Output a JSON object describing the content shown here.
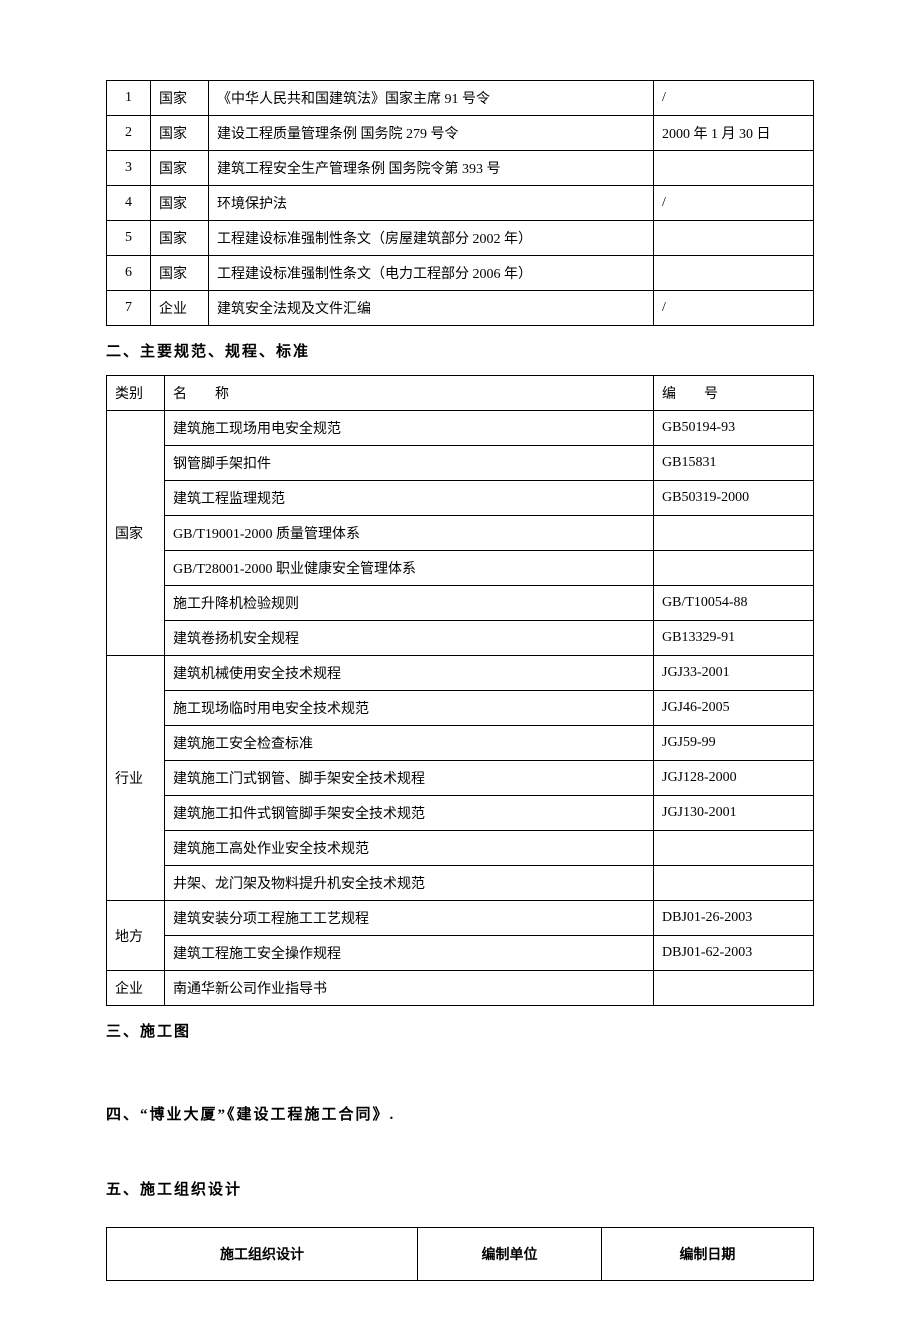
{
  "table1": {
    "rows": [
      {
        "num": "1",
        "cat": "国家",
        "name": "《中华人民共和国建筑法》国家主席 91 号令",
        "date": "/"
      },
      {
        "num": "2",
        "cat": "国家",
        "name": "建设工程质量管理条例 国务院 279 号令",
        "date": "2000 年 1 月 30 日"
      },
      {
        "num": "3",
        "cat": "国家",
        "name": "建筑工程安全生产管理条例 国务院令第 393 号",
        "date": ""
      },
      {
        "num": "4",
        "cat": "国家",
        "name": "环境保护法",
        "date": "/"
      },
      {
        "num": "5",
        "cat": "国家",
        "name": "工程建设标准强制性条文（房屋建筑部分 2002 年）",
        "date": ""
      },
      {
        "num": "6",
        "cat": "国家",
        "name": "工程建设标准强制性条文（电力工程部分 2006 年）",
        "date": ""
      },
      {
        "num": "7",
        "cat": "企业",
        "name": "建筑安全法规及文件汇编",
        "date": "/"
      }
    ]
  },
  "section2_title": "二、主要规范、规程、标准",
  "table2": {
    "header": {
      "cat": "类别",
      "name": "名　　称",
      "code": "编　　号"
    },
    "groups": [
      {
        "cat": "国家",
        "rows": [
          {
            "name": "建筑施工现场用电安全规范",
            "code": "GB50194-93"
          },
          {
            "name": "钢管脚手架扣件",
            "code": "GB15831"
          },
          {
            "name": "建筑工程监理规范",
            "code": "GB50319-2000"
          },
          {
            "name": "GB/T19001-2000 质量管理体系",
            "code": ""
          },
          {
            "name": "GB/T28001-2000 职业健康安全管理体系",
            "code": ""
          },
          {
            "name": "施工升降机检验规则",
            "code": "GB/T10054-88"
          },
          {
            "name": "建筑卷扬机安全规程",
            "code": "GB13329-91"
          }
        ]
      },
      {
        "cat": "行业",
        "rows": [
          {
            "name": "建筑机械使用安全技术规程",
            "code": "JGJ33-2001"
          },
          {
            "name": "施工现场临时用电安全技术规范",
            "code": "JGJ46-2005"
          },
          {
            "name": "建筑施工安全检查标准",
            "code": "JGJ59-99"
          },
          {
            "name": "建筑施工门式钢管、脚手架安全技术规程",
            "code": "JGJ128-2000"
          },
          {
            "name": "建筑施工扣件式钢管脚手架安全技术规范",
            "code": "JGJ130-2001"
          },
          {
            "name": "建筑施工高处作业安全技术规范",
            "code": ""
          },
          {
            "name": "井架、龙门架及物料提升机安全技术规范",
            "code": ""
          }
        ]
      },
      {
        "cat": "地方",
        "rows": [
          {
            "name": "建筑安装分项工程施工工艺规程",
            "code": "DBJ01-26-2003"
          },
          {
            "name": "建筑工程施工安全操作规程",
            "code": "DBJ01-62-2003"
          }
        ]
      },
      {
        "cat": "企业",
        "rows": [
          {
            "name": "南通华新公司作业指导书",
            "code": ""
          }
        ]
      }
    ]
  },
  "section3_title": "三、施工图",
  "section4_title": "四、“博业大厦”《建设工程施工合同》.",
  "section5_title": "五、施工组织设计",
  "table3": {
    "cols": [
      "施工组织设计",
      "编制单位",
      "编制日期"
    ]
  },
  "style": {
    "background": "#ffffff",
    "text_color": "#000000",
    "border_color": "#000000",
    "body_fontsize": 14,
    "heading_fontsize": 15
  }
}
